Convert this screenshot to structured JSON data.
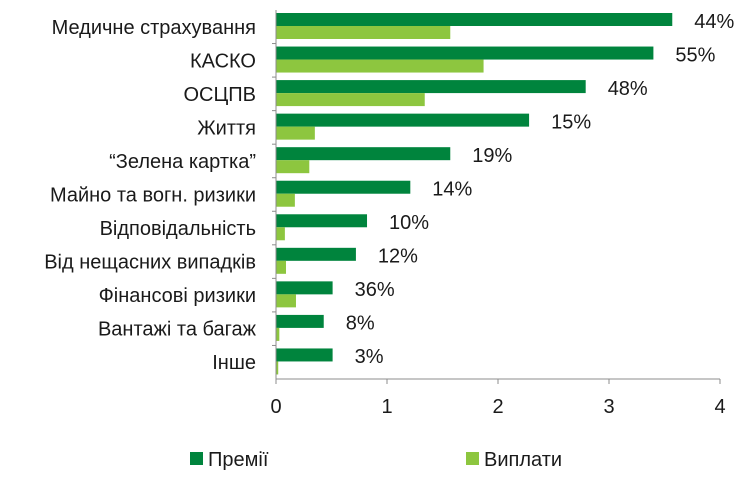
{
  "chart_data": {
    "type": "bar",
    "orientation": "horizontal",
    "categories": [
      "Медичне страхування",
      "КАСКО",
      "ОСЦПВ",
      "Життя",
      "“Зелена картка”",
      "Майно та вогн. ризики",
      "Відповідальність",
      "Від нещасних випадків",
      "Фінансові ризики",
      "Вантажі та багаж",
      "Інше"
    ],
    "series": [
      {
        "name": "Премії",
        "color": "#00843d",
        "values": [
          3.57,
          3.4,
          2.79,
          2.28,
          1.57,
          1.21,
          0.82,
          0.72,
          0.51,
          0.43,
          0.51
        ]
      },
      {
        "name": "Виплати",
        "color": "#8dc63f",
        "values": [
          1.57,
          1.87,
          1.34,
          0.35,
          0.3,
          0.17,
          0.08,
          0.09,
          0.18,
          0.03,
          0.02
        ]
      }
    ],
    "data_labels": [
      "44%",
      "55%",
      "48%",
      "15%",
      "19%",
      "14%",
      "10%",
      "12%",
      "36%",
      "8%",
      "3%"
    ],
    "xlim": [
      0,
      4
    ],
    "xticks": [
      "0",
      "1",
      "2",
      "3",
      "4"
    ],
    "grid": false,
    "legend_position": "bottom"
  }
}
